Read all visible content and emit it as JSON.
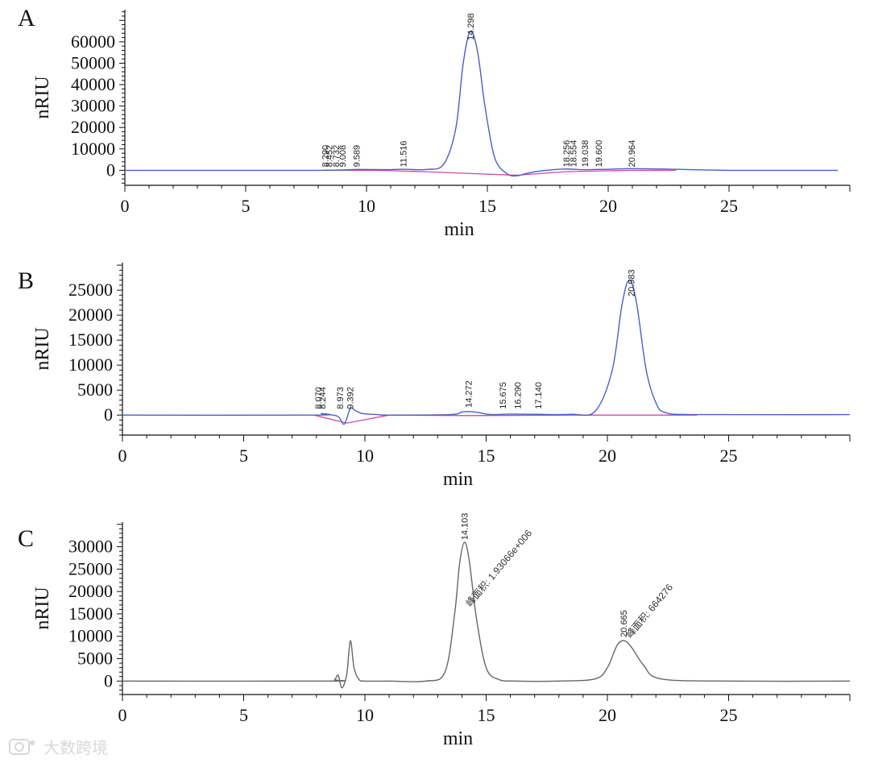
{
  "colors": {
    "trace": "#4a5fc8",
    "baseline": "#d048a8",
    "trace_c": "#666666",
    "axis": "#111111"
  },
  "watermark": {
    "icon": "camera-icon",
    "text": "大数跨境"
  },
  "chart_data": [
    {
      "panel": "A",
      "type": "line",
      "xlabel": "min",
      "ylabel": "nRIU",
      "xlim": [
        0,
        30
      ],
      "ylim": [
        -7000,
        75000
      ],
      "xticks": [
        0,
        5,
        10,
        15,
        20,
        25
      ],
      "yticks": [
        0,
        10000,
        20000,
        30000,
        40000,
        50000,
        60000
      ],
      "grid": false,
      "series": [
        {
          "x": [
            0,
            8,
            9.6,
            10.8,
            11.5,
            12.5,
            13.2,
            13.7,
            14.0,
            14.3,
            14.6,
            14.9,
            15.3,
            15.8,
            16.2,
            16.6,
            17.2,
            18.2,
            19.0,
            20.0,
            21.0,
            22.8,
            25,
            29.5
          ],
          "y": [
            0,
            0,
            400,
            300,
            500,
            400,
            3000,
            20000,
            50000,
            65000,
            55000,
            30000,
            6000,
            -1500,
            -2600,
            -1500,
            -300,
            600,
            300,
            500,
            800,
            500,
            0,
            0
          ]
        }
      ],
      "baseline": {
        "x": [
          8.2,
          10.5,
          12.5,
          14.3,
          16.2,
          18.3,
          20.9,
          22.8
        ],
        "y": [
          0,
          0,
          -700,
          -1500,
          -2300,
          -600,
          0,
          0
        ]
      },
      "peak_labels": [
        "8.290",
        "8.452",
        "8.732",
        "9.008",
        "9.589",
        "11.516",
        "14.298",
        "18.256",
        "18.554",
        "19.038",
        "19.600",
        "20.964"
      ]
    },
    {
      "panel": "B",
      "type": "line",
      "xlabel": "min",
      "ylabel": "nRIU",
      "xlim": [
        0,
        30
      ],
      "ylim": [
        -4000,
        30500
      ],
      "xticks": [
        0,
        5,
        10,
        15,
        20,
        25
      ],
      "yticks": [
        0,
        5000,
        10000,
        15000,
        20000,
        25000
      ],
      "grid": false,
      "series": [
        {
          "x": [
            0,
            7.9,
            8.2,
            8.5,
            8.9,
            9.15,
            9.4,
            9.6,
            9.9,
            10.5,
            11.0,
            13.5,
            14.0,
            14.3,
            14.7,
            15.2,
            16.0,
            17.1,
            18.5,
            19.5,
            20.2,
            20.6,
            20.9,
            21.2,
            21.6,
            22.0,
            22.4,
            23.7,
            30
          ],
          "y": [
            0,
            0,
            300,
            100,
            -300,
            -1800,
            1300,
            900,
            300,
            100,
            0,
            100,
            600,
            700,
            500,
            100,
            200,
            150,
            150,
            800,
            9000,
            22000,
            27000,
            22500,
            9000,
            2500,
            500,
            100,
            100
          ]
        }
      ],
      "baseline": {
        "x": [
          7.9,
          9.25,
          11.0,
          14.3,
          18.5,
          20.9,
          23.7
        ],
        "y": [
          0,
          -1600,
          0,
          -100,
          0,
          0,
          0
        ]
      },
      "peak_labels": [
        "8.070",
        "8.244",
        "8.973",
        "9.392",
        "14.272",
        "15.675",
        "16.290",
        "17.140",
        "20.983"
      ]
    },
    {
      "panel": "C",
      "type": "line",
      "xlabel": "min",
      "ylabel": "nRIU",
      "xlim": [
        0,
        30
      ],
      "ylim": [
        -3000,
        35500
      ],
      "xticks": [
        0,
        5,
        10,
        15,
        20,
        25
      ],
      "yticks": [
        0,
        5000,
        10000,
        15000,
        20000,
        25000,
        30000
      ],
      "grid": false,
      "series": [
        {
          "x": [
            0,
            8.5,
            8.75,
            8.9,
            9.05,
            9.25,
            9.4,
            9.55,
            9.75,
            10.0,
            11.0,
            12.5,
            13.3,
            13.7,
            13.9,
            14.1,
            14.3,
            14.6,
            15.0,
            15.5,
            16.2,
            18.0,
            19.5,
            20.0,
            20.4,
            20.7,
            21.0,
            21.5,
            22.2,
            25,
            30
          ],
          "y": [
            0,
            0,
            300,
            1300,
            -1500,
            1500,
            9000,
            3000,
            400,
            0,
            0,
            0,
            2000,
            15000,
            26000,
            31000,
            27000,
            14000,
            3000,
            400,
            0,
            0,
            500,
            3000,
            8000,
            9000,
            7500,
            3500,
            500,
            0,
            0
          ]
        }
      ],
      "peak_labels": [
        "14.103",
        "20.665"
      ],
      "annotations": [
        "峰面积: 1.93066e+006",
        "峰面积: 664276"
      ]
    }
  ]
}
